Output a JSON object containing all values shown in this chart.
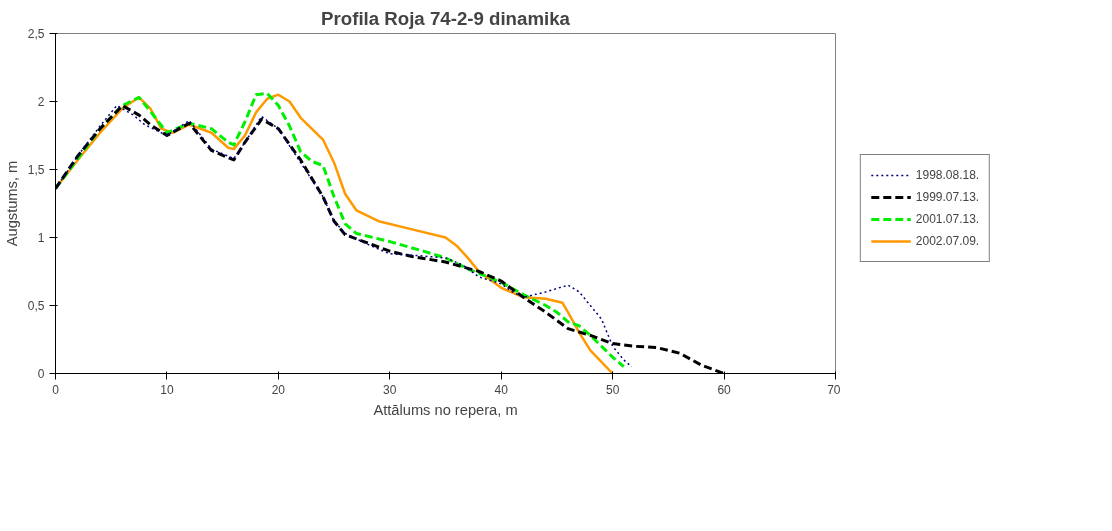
{
  "chart_data": {
    "type": "line",
    "title": "Profila Roja 74-2-9 dinamika",
    "xlabel": "Attālums no repera, m",
    "ylabel": "Augstums, m",
    "xlim": [
      0,
      70
    ],
    "xticks": [
      0,
      10,
      20,
      30,
      40,
      50,
      60,
      70
    ],
    "ylim": [
      0,
      2.5
    ],
    "yticks": [
      0,
      {
        "value": 0.5,
        "label": "0,5"
      },
      1,
      {
        "value": 1.5,
        "label": "1,5"
      },
      2,
      {
        "value": 2.5,
        "label": "2,5"
      }
    ],
    "grid": false,
    "legend": "right",
    "series": [
      {
        "name": "1998.08.18.",
        "color": "#000080",
        "line_style": "dotted",
        "x": [
          0,
          2,
          4,
          5.5,
          7,
          8,
          10,
          12,
          14,
          16,
          17,
          18.5,
          20,
          22,
          24,
          25,
          26,
          28,
          30,
          32,
          35,
          36.5,
          38,
          40,
          41,
          42,
          44,
          46,
          47,
          49,
          50,
          51,
          51.7
        ],
        "values": [
          1.36,
          1.6,
          1.82,
          1.97,
          1.9,
          1.83,
          1.75,
          1.86,
          1.65,
          1.58,
          1.7,
          1.89,
          1.8,
          1.55,
          1.3,
          1.12,
          1.03,
          0.95,
          0.88,
          0.87,
          0.85,
          0.8,
          0.71,
          0.66,
          0.6,
          0.56,
          0.6,
          0.65,
          0.6,
          0.4,
          0.2,
          0.1,
          0.05
        ]
      },
      {
        "name": "1999.07.13.",
        "color": "#000000",
        "line_style": "dashed",
        "x": [
          0,
          2,
          4,
          6,
          7.5,
          8.5,
          10,
          12,
          14,
          16,
          17,
          18.5,
          20,
          22,
          24,
          25,
          26,
          28,
          30,
          32,
          35,
          38,
          40,
          42,
          44,
          46,
          48,
          50,
          52,
          54,
          56,
          58,
          60
        ],
        "values": [
          1.36,
          1.6,
          1.8,
          1.97,
          1.9,
          1.83,
          1.75,
          1.84,
          1.64,
          1.57,
          1.7,
          1.87,
          1.8,
          1.57,
          1.3,
          1.12,
          1.02,
          0.96,
          0.9,
          0.86,
          0.82,
          0.75,
          0.68,
          0.56,
          0.45,
          0.33,
          0.28,
          0.22,
          0.2,
          0.19,
          0.15,
          0.06,
          0
        ]
      },
      {
        "name": "2001.07.13.",
        "color": "#00ee00",
        "line_style": "dashed",
        "x": [
          0,
          4,
          6,
          7.5,
          8.5,
          10,
          12,
          14,
          15.5,
          16,
          17,
          18,
          19,
          20,
          21,
          22,
          23,
          24,
          25,
          26,
          27,
          30,
          33,
          35,
          37,
          40,
          42,
          44,
          45,
          46,
          47,
          48,
          49,
          50,
          51
        ],
        "values": [
          1.36,
          1.8,
          1.97,
          2.03,
          1.93,
          1.77,
          1.84,
          1.8,
          1.7,
          1.68,
          1.85,
          2.05,
          2.06,
          1.97,
          1.82,
          1.63,
          1.56,
          1.53,
          1.3,
          1.1,
          1.03,
          0.97,
          0.9,
          0.85,
          0.77,
          0.67,
          0.58,
          0.5,
          0.45,
          0.38,
          0.35,
          0.28,
          0.2,
          0.12,
          0.05
        ]
      },
      {
        "name": "2002.07.09.",
        "color": "#ff9900",
        "line_style": "solid",
        "x": [
          0,
          2,
          4,
          6,
          7.5,
          8.5,
          9.5,
          10.5,
          12,
          14,
          15.5,
          16,
          17,
          18,
          19,
          20,
          21,
          22,
          24,
          25,
          26,
          27,
          29,
          32,
          35,
          36,
          37,
          38,
          40,
          42,
          44,
          45.5,
          46,
          47,
          48,
          50
        ],
        "values": [
          1.36,
          1.57,
          1.77,
          1.95,
          2.03,
          1.95,
          1.8,
          1.77,
          1.83,
          1.77,
          1.66,
          1.65,
          1.75,
          1.92,
          2.02,
          2.05,
          2.0,
          1.88,
          1.72,
          1.55,
          1.32,
          1.2,
          1.12,
          1.06,
          1.0,
          0.94,
          0.85,
          0.75,
          0.63,
          0.56,
          0.55,
          0.52,
          0.45,
          0.3,
          0.17,
          0
        ]
      }
    ]
  }
}
